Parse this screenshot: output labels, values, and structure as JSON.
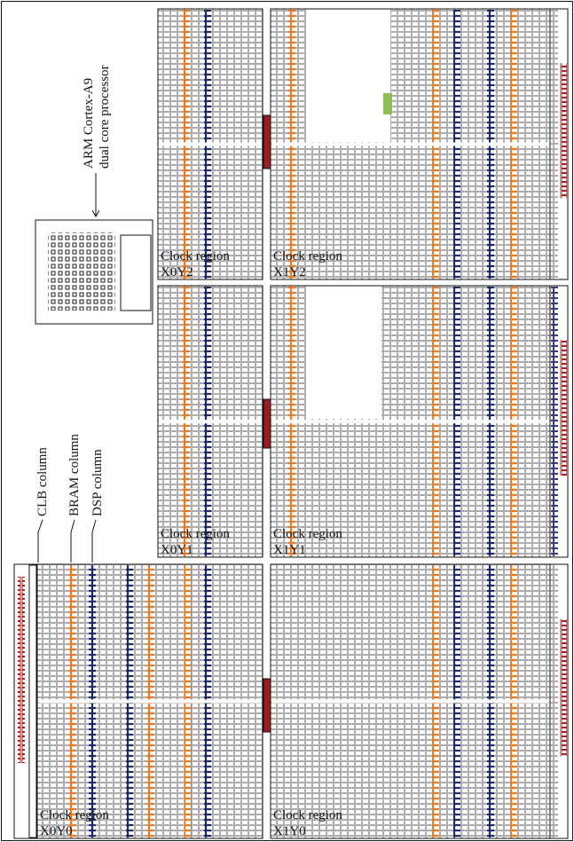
{
  "processor": {
    "lines": [
      "ARM Cortex-A9",
      "dual core processor"
    ]
  },
  "column_labels": [
    "CLB column",
    "BRAM column",
    "DSP column"
  ],
  "regions": [
    {
      "label": "Clock region",
      "name": "X0Y2"
    },
    {
      "label": "Clock region",
      "name": "X1Y2"
    },
    {
      "label": "Clock region",
      "name": "X0Y1"
    },
    {
      "label": "Clock region",
      "name": "X1Y1"
    },
    {
      "label": "Clock region",
      "name": "X0Y0"
    },
    {
      "label": "Clock region",
      "name": "X1Y0"
    }
  ]
}
